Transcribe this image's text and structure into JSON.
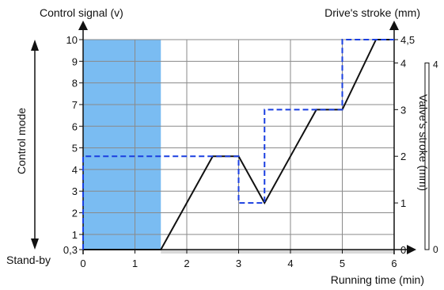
{
  "chart_data": {
    "type": "line",
    "x_axis": {
      "label": "Running time (min)",
      "range": [
        0,
        6
      ],
      "ticks": [
        "0",
        "1",
        "2",
        "3",
        "4",
        "5",
        "6"
      ]
    },
    "y_left": {
      "label": "Control signal (v)",
      "range": [
        0.3,
        10
      ],
      "ticks": [
        {
          "value": 0.3,
          "label": "0,3"
        },
        {
          "value": 1,
          "label": "1"
        },
        {
          "value": 2,
          "label": "2"
        },
        {
          "value": 3,
          "label": "3"
        },
        {
          "value": 4,
          "label": "4"
        },
        {
          "value": 5,
          "label": "5"
        },
        {
          "value": 6,
          "label": "6"
        },
        {
          "value": 7,
          "label": "7"
        },
        {
          "value": 8,
          "label": "8"
        },
        {
          "value": 9,
          "label": "9"
        },
        {
          "value": 10,
          "label": "10"
        }
      ]
    },
    "y_right": {
      "label": "Drive's stroke (mm)",
      "range": [
        0,
        4.5
      ],
      "ticks": [
        {
          "value": 0,
          "label": "0"
        },
        {
          "value": 1,
          "label": "1"
        },
        {
          "value": 2,
          "label": "2"
        },
        {
          "value": 3,
          "label": "3"
        },
        {
          "value": 4,
          "label": "4"
        },
        {
          "value": 4.5,
          "label": "4,5"
        }
      ]
    },
    "valve_scale": {
      "label": "Valve's stroke (mm)",
      "min_label": "0",
      "max_label": "4"
    },
    "left_annotations": {
      "control_mode": "Control mode",
      "stand_by": "Stand-by"
    },
    "grid": true,
    "shaded_region": {
      "x": [
        0,
        1.5
      ],
      "y": [
        0.3,
        10
      ],
      "color": "#7abcf2"
    },
    "series": [
      {
        "style": "solid",
        "color": "#111111",
        "axis": "right",
        "x": [
          0,
          1.5,
          2.5,
          3,
          3.5,
          4.5,
          5,
          5.65,
          6
        ],
        "y": [
          0,
          0,
          2,
          2,
          1,
          3,
          3,
          4.5,
          4.5
        ]
      },
      {
        "style": "dashed",
        "color": "#1a3fe0",
        "axis": "right",
        "x": [
          0,
          0,
          3,
          3,
          3.5,
          3.5,
          5,
          5,
          6
        ],
        "y": [
          0,
          2,
          2,
          1,
          1,
          3,
          3,
          4.5,
          4.5
        ]
      }
    ]
  }
}
